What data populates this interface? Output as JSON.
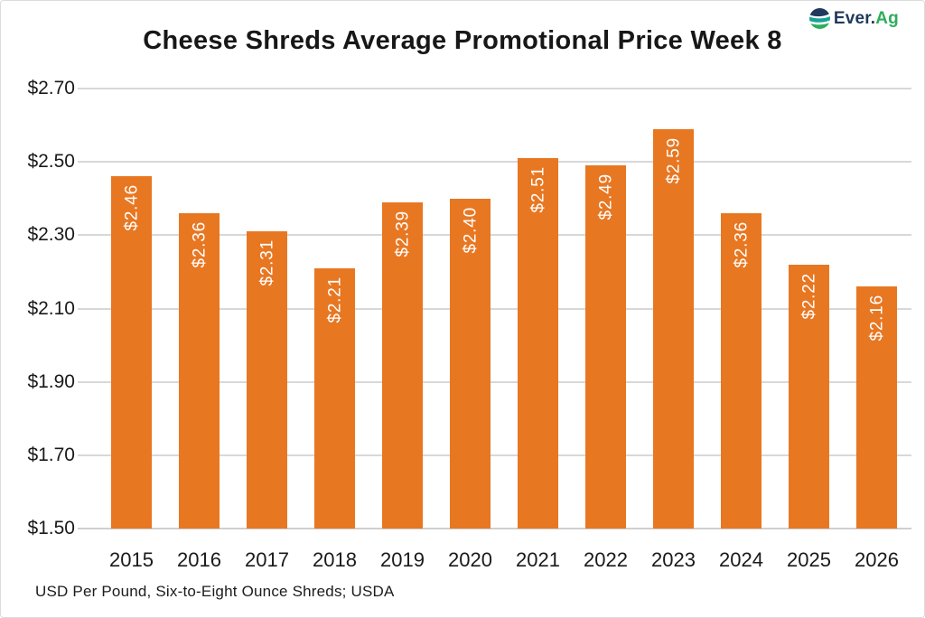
{
  "logo": {
    "icon": "everag-globe-icon",
    "text_primary": "Ever.",
    "text_secondary": "Ag"
  },
  "footnote": "USD Per Pound, Six-to-Eight Ounce Shreds; USDA",
  "chart_data": {
    "type": "bar",
    "title": "Cheese Shreds Average Promotional Price Week 8",
    "categories": [
      "2015",
      "2016",
      "2017",
      "2018",
      "2019",
      "2020",
      "2021",
      "2022",
      "2023",
      "2024",
      "2025",
      "2026"
    ],
    "values": [
      2.46,
      2.36,
      2.31,
      2.21,
      2.39,
      2.4,
      2.51,
      2.49,
      2.59,
      2.36,
      2.22,
      2.16
    ],
    "bar_labels": [
      "$2.46",
      "$2.36",
      "$2.31",
      "$2.21",
      "$2.39",
      "$2.40",
      "$2.51",
      "$2.49",
      "$2.59",
      "$2.36",
      "$2.22",
      "$2.16"
    ],
    "xlabel": "",
    "ylabel": "",
    "ylim": [
      1.5,
      2.7
    ],
    "ytick_labels": [
      "$2.70",
      "$2.50",
      "$2.30",
      "$2.10",
      "$1.90",
      "$1.70",
      "$1.50"
    ],
    "ytick_values": [
      2.7,
      2.5,
      2.3,
      2.1,
      1.9,
      1.7,
      1.5
    ],
    "grid": true,
    "legend": false,
    "value_label_rotation_deg": -90,
    "colors": {
      "bar": "#E87722",
      "bar_label": "#FFFFFF",
      "gridline": "#D8D8D8",
      "baseline": "#CFCFCF",
      "axis_text": "#1A1A1A",
      "logo_navy": "#20395C",
      "logo_teal": "#17A398",
      "logo_green": "#2EAD5B"
    }
  }
}
